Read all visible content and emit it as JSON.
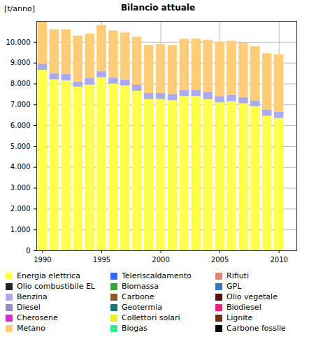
{
  "chart_data": {
    "type": "bar",
    "stacked": true,
    "grid": true,
    "title": "Bilancio attuale",
    "y_label": "[t/anno]",
    "x": [
      1990,
      1991,
      1992,
      1993,
      1994,
      1995,
      1996,
      1997,
      1998,
      1999,
      2000,
      2001,
      2002,
      2003,
      2004,
      2005,
      2006,
      2007,
      2008,
      2009,
      2010
    ],
    "xlim": [
      1989.5,
      2011.5
    ],
    "xticks": [
      1990,
      1995,
      2000,
      2005,
      2010
    ],
    "ylim": [
      0,
      11000
    ],
    "yticks": [
      0,
      {
        "value": 1000,
        "label": "1.000"
      },
      {
        "value": 2000,
        "label": "2.000"
      },
      {
        "value": 3000,
        "label": "3.000"
      },
      {
        "value": 4000,
        "label": "4.000"
      },
      {
        "value": 5000,
        "label": "5.000"
      },
      {
        "value": 6000,
        "label": "6.000"
      },
      {
        "value": 7000,
        "label": "7.000"
      },
      {
        "value": 8000,
        "label": "8.000"
      },
      {
        "value": 9000,
        "label": "9.000"
      },
      {
        "value": 10000,
        "label": "10.000"
      }
    ],
    "series": [
      {
        "name": "Energia elettrica",
        "color": "#ffff4d",
        "values": [
          8650,
          8200,
          8150,
          7850,
          7950,
          8300,
          8000,
          7900,
          7650,
          7250,
          7250,
          7200,
          7400,
          7400,
          7250,
          7100,
          7150,
          7050,
          6900,
          6450,
          6350
        ]
      },
      {
        "name": "Olio combustibile EL",
        "color": "#222222",
        "values": [
          0,
          0,
          0,
          0,
          0,
          0,
          0,
          0,
          0,
          0,
          0,
          0,
          0,
          0,
          0,
          0,
          0,
          0,
          0,
          0,
          0
        ]
      },
      {
        "name": "Benzina",
        "color": "#aaaaee",
        "values": [
          300,
          300,
          300,
          250,
          300,
          300,
          300,
          300,
          300,
          300,
          300,
          300,
          300,
          300,
          350,
          300,
          300,
          300,
          300,
          300,
          300
        ]
      },
      {
        "name": "Diesel",
        "color": "#9988cc",
        "values": [
          0,
          0,
          0,
          0,
          0,
          0,
          0,
          0,
          0,
          0,
          0,
          0,
          0,
          0,
          0,
          0,
          0,
          0,
          0,
          0,
          0
        ]
      },
      {
        "name": "Cherosene",
        "color": "#cc33cc",
        "values": [
          0,
          0,
          0,
          0,
          0,
          0,
          0,
          0,
          0,
          0,
          0,
          0,
          0,
          0,
          0,
          0,
          0,
          0,
          0,
          0,
          0
        ]
      },
      {
        "name": "Metano",
        "color": "#ffcc77",
        "values": [
          2050,
          2100,
          2150,
          2200,
          2150,
          2200,
          2250,
          2250,
          2300,
          2300,
          2350,
          2350,
          2450,
          2450,
          2500,
          2600,
          2600,
          2600,
          2600,
          2700,
          2750
        ]
      },
      {
        "name": "Teleriscaldamento",
        "color": "#3366ff",
        "values": [
          0,
          0,
          0,
          0,
          0,
          0,
          0,
          0,
          0,
          0,
          0,
          0,
          0,
          0,
          0,
          0,
          0,
          0,
          0,
          0,
          0
        ]
      },
      {
        "name": "Biomassa",
        "color": "#33aa33",
        "values": [
          0,
          0,
          0,
          0,
          0,
          0,
          0,
          0,
          0,
          0,
          0,
          0,
          0,
          0,
          0,
          0,
          0,
          0,
          0,
          0,
          0
        ]
      },
      {
        "name": "Carbone",
        "color": "#8b5a2b",
        "values": [
          0,
          0,
          0,
          0,
          0,
          0,
          0,
          0,
          0,
          0,
          0,
          0,
          0,
          0,
          0,
          0,
          0,
          0,
          0,
          0,
          0
        ]
      },
      {
        "name": "Geotermia",
        "color": "#117777",
        "values": [
          0,
          0,
          0,
          0,
          0,
          0,
          0,
          0,
          0,
          0,
          0,
          0,
          0,
          0,
          0,
          0,
          0,
          0,
          0,
          0,
          0
        ]
      },
      {
        "name": "Collettori solari",
        "color": "#eeee22",
        "values": [
          0,
          0,
          0,
          0,
          0,
          0,
          0,
          0,
          0,
          0,
          0,
          0,
          0,
          0,
          0,
          0,
          0,
          0,
          0,
          0,
          0
        ]
      },
      {
        "name": "Biogas",
        "color": "#33ee88",
        "values": [
          0,
          0,
          0,
          0,
          0,
          0,
          0,
          0,
          0,
          0,
          0,
          0,
          0,
          0,
          0,
          0,
          0,
          0,
          0,
          0,
          0
        ]
      },
      {
        "name": "Rifiuti",
        "color": "#dd8877",
        "values": [
          0,
          0,
          0,
          0,
          0,
          0,
          0,
          0,
          0,
          0,
          0,
          0,
          0,
          0,
          0,
          0,
          0,
          0,
          0,
          0,
          0
        ]
      },
      {
        "name": "GPL",
        "color": "#3377bb",
        "values": [
          0,
          0,
          0,
          0,
          0,
          0,
          0,
          0,
          0,
          0,
          0,
          0,
          0,
          0,
          0,
          0,
          0,
          0,
          0,
          0,
          0
        ]
      },
      {
        "name": "Olio vegetale",
        "color": "#551111",
        "values": [
          0,
          0,
          0,
          0,
          0,
          0,
          0,
          0,
          0,
          0,
          0,
          0,
          0,
          0,
          0,
          0,
          0,
          0,
          0,
          0,
          0
        ]
      },
      {
        "name": "Biodiesel",
        "color": "#ee2277",
        "values": [
          0,
          0,
          0,
          0,
          0,
          0,
          0,
          0,
          0,
          0,
          0,
          0,
          0,
          0,
          0,
          0,
          0,
          0,
          0,
          0,
          0
        ]
      },
      {
        "name": "Lignite",
        "color": "#663311",
        "values": [
          0,
          0,
          0,
          0,
          0,
          0,
          0,
          0,
          0,
          0,
          0,
          0,
          0,
          0,
          0,
          0,
          0,
          0,
          0,
          0,
          0
        ]
      },
      {
        "name": "Carbone fossile",
        "color": "#000000",
        "values": [
          0,
          0,
          0,
          0,
          0,
          0,
          0,
          0,
          0,
          0,
          0,
          0,
          0,
          0,
          0,
          0,
          0,
          0,
          0,
          0,
          0
        ]
      }
    ]
  }
}
